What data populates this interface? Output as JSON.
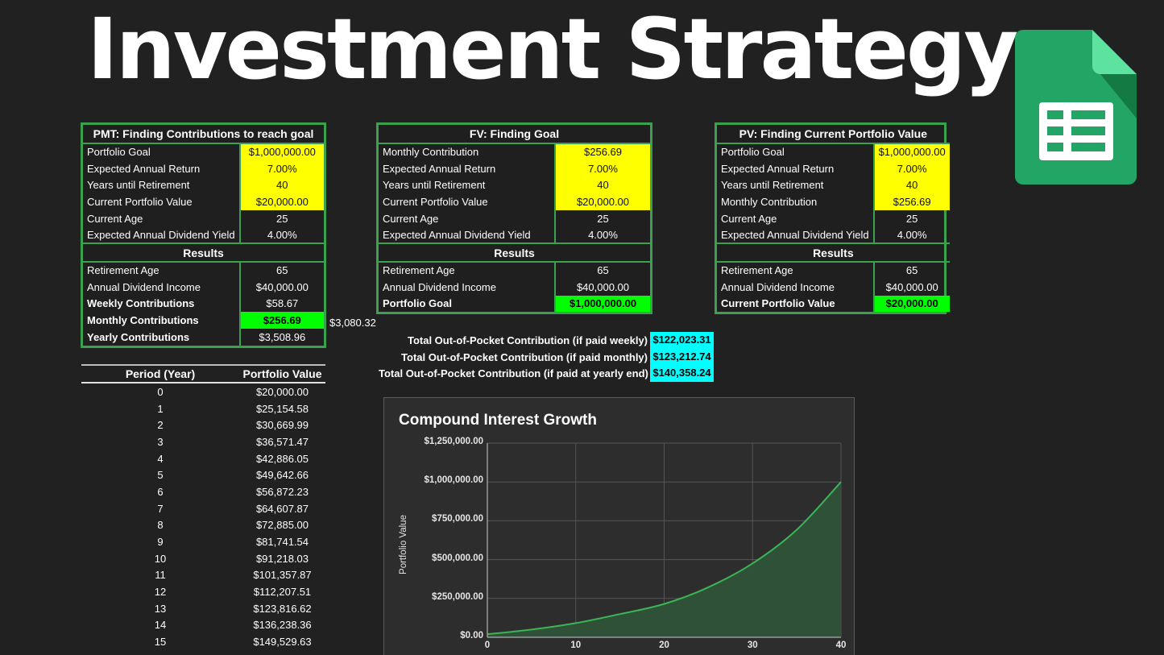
{
  "page_title": "Investment Strategy",
  "app_icon": "google-sheets-icon",
  "colors": {
    "background": "#212121",
    "table_border": "#3aa24e",
    "input_highlight": "#ffff00",
    "result_highlight": "#00ff00",
    "total_highlight": "#00ffff",
    "chart_line": "#3bb555",
    "chart_fill": "#2f5138"
  },
  "pmt": {
    "title": "PMT: Finding Contributions to reach goal",
    "inputs": [
      {
        "label": "Portfolio Goal",
        "value": "$1,000,000.00"
      },
      {
        "label": "Expected Annual Return",
        "value": "7.00%"
      },
      {
        "label": "Years until Retirement",
        "value": "40"
      },
      {
        "label": "Current Portfolio Value",
        "value": "$20,000.00"
      },
      {
        "label": "Current Age",
        "value": "25"
      },
      {
        "label": "Expected Annual Dividend Yield",
        "value": "4.00%"
      }
    ],
    "results_label": "Results",
    "results": [
      {
        "label": "Retirement Age",
        "value": "65"
      },
      {
        "label": "Annual Dividend Income",
        "value": "$40,000.00"
      },
      {
        "label": "Weekly Contributions",
        "value": "$58.67"
      },
      {
        "label": "Monthly Contributions",
        "value": "$256.69"
      },
      {
        "label": "Yearly Contributions",
        "value": "$3,508.96"
      }
    ],
    "side_value": "$3,080.32"
  },
  "fv": {
    "title": "FV: Finding Goal",
    "inputs": [
      {
        "label": "Monthly Contribution",
        "value": "$256.69"
      },
      {
        "label": "Expected Annual Return",
        "value": "7.00%"
      },
      {
        "label": "Years until Retirement",
        "value": "40"
      },
      {
        "label": "Current Portfolio Value",
        "value": "$20,000.00"
      },
      {
        "label": "Current Age",
        "value": "25"
      },
      {
        "label": "Expected Annual Dividend Yield",
        "value": "4.00%"
      }
    ],
    "results_label": "Results",
    "results": [
      {
        "label": "Retirement Age",
        "value": "65"
      },
      {
        "label": "Annual Dividend Income",
        "value": "$40,000.00"
      },
      {
        "label": "Portfolio Goal",
        "value": "$1,000,000.00"
      }
    ]
  },
  "pv": {
    "title": "PV: Finding Current Portfolio Value",
    "inputs": [
      {
        "label": "Portfolio Goal",
        "value": "$1,000,000.00"
      },
      {
        "label": "Expected Annual Return",
        "value": "7.00%"
      },
      {
        "label": "Years until Retirement",
        "value": "40"
      },
      {
        "label": "Monthly Contribution",
        "value": "$256.69"
      },
      {
        "label": "Current Age",
        "value": "25"
      },
      {
        "label": "Expected Annual Dividend Yield",
        "value": "4.00%"
      }
    ],
    "results_label": "Results",
    "results": [
      {
        "label": "Retirement Age",
        "value": "65"
      },
      {
        "label": "Annual Dividend Income",
        "value": "$40,000.00"
      },
      {
        "label": "Current Portfolio Value",
        "value": "$20,000.00"
      }
    ]
  },
  "totals": [
    {
      "label": "Total Out-of-Pocket Contribution (if paid weekly)",
      "value": "$122,023.31"
    },
    {
      "label": "Total Out-of-Pocket Contribution (if paid monthly)",
      "value": "$123,212.74"
    },
    {
      "label": "Total Out-of-Pocket Contribution (if paid at yearly end)",
      "value": "$140,358.24"
    }
  ],
  "period_table": {
    "headers": [
      "Period (Year)",
      "Portfolio Value"
    ],
    "rows": [
      [
        "0",
        "$20,000.00"
      ],
      [
        "1",
        "$25,154.58"
      ],
      [
        "2",
        "$30,669.99"
      ],
      [
        "3",
        "$36,571.47"
      ],
      [
        "4",
        "$42,886.05"
      ],
      [
        "5",
        "$49,642.66"
      ],
      [
        "6",
        "$56,872.23"
      ],
      [
        "7",
        "$64,607.87"
      ],
      [
        "8",
        "$72,885.00"
      ],
      [
        "9",
        "$81,741.54"
      ],
      [
        "10",
        "$91,218.03"
      ],
      [
        "11",
        "$101,357.87"
      ],
      [
        "12",
        "$112,207.51"
      ],
      [
        "13",
        "$123,816.62"
      ],
      [
        "14",
        "$136,238.36"
      ],
      [
        "15",
        "$149,529.63"
      ]
    ]
  },
  "chart_data": {
    "type": "area",
    "title": "Compound Interest Growth",
    "xlabel": "",
    "ylabel": "Portfolio Value",
    "x": [
      0,
      5,
      10,
      15,
      20,
      25,
      30,
      35,
      40
    ],
    "series": [
      {
        "name": "Portfolio Value",
        "values": [
          20000,
          49643,
          91218,
          149530,
          214500,
          322000,
          475500,
          692400,
          1000000
        ]
      }
    ],
    "xticks": [
      "0",
      "10",
      "20",
      "30",
      "40"
    ],
    "yticks": [
      "$0.00",
      "$250,000.00",
      "$500,000.00",
      "$750,000.00",
      "$1,000,000.00",
      "$1,250,000.00"
    ],
    "xlim": [
      0,
      40
    ],
    "ylim": [
      0,
      1250000
    ],
    "grid": true,
    "legend": "none"
  }
}
